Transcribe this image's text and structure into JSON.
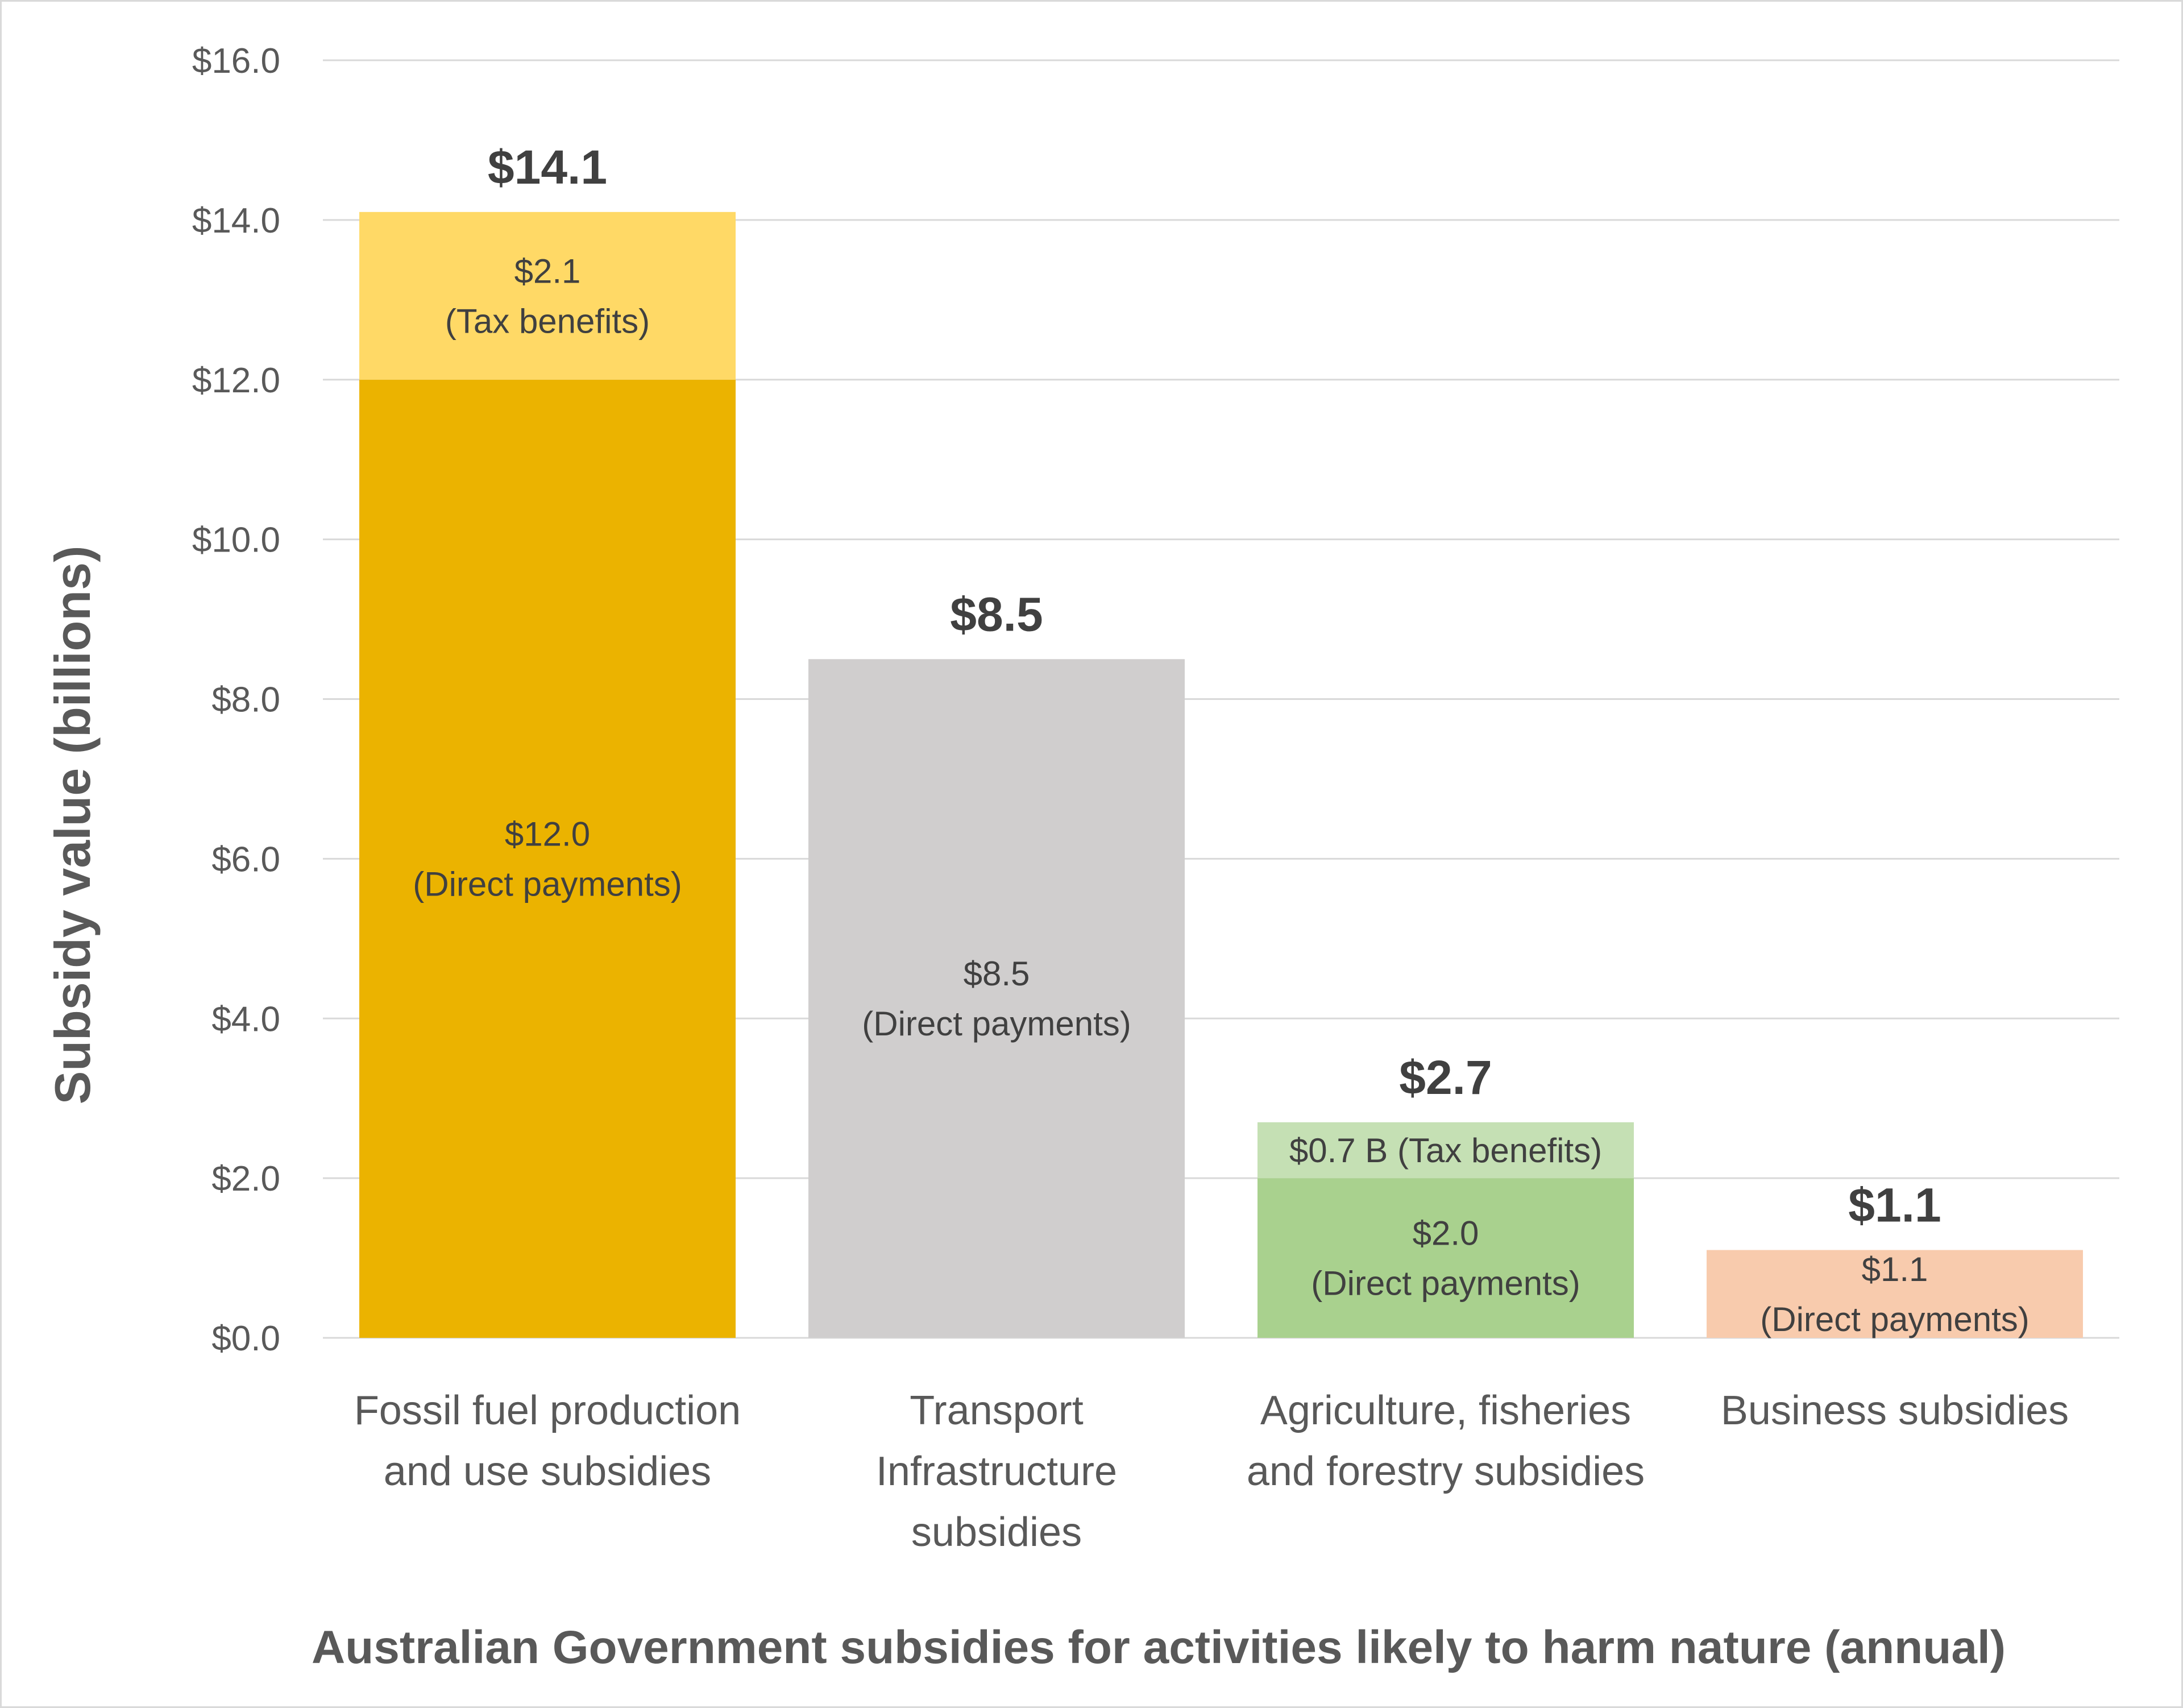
{
  "chart_data": {
    "type": "bar",
    "stacked": true,
    "title": "",
    "xlabel": "Australian Government subsidies for activities likely to harm nature (annual)",
    "ylabel": "Subsidy value (billions)",
    "ylim": [
      0,
      16
    ],
    "yticks": [
      0,
      2,
      4,
      6,
      8,
      10,
      12,
      14,
      16
    ],
    "ytick_labels": [
      "$0.0",
      "$2.0",
      "$4.0",
      "$6.0",
      "$8.0",
      "$10.0",
      "$12.0",
      "$14.0",
      "$16.0"
    ],
    "grid": true,
    "categories": [
      [
        "Fossil fuel production",
        "and use subsidies"
      ],
      [
        "Transport",
        "Infrastructure",
        "subsidies"
      ],
      [
        "Agriculture, fisheries",
        "and forestry subsidies"
      ],
      [
        "Business subsidies"
      ]
    ],
    "bars": [
      {
        "total": 14.1,
        "total_label": "$14.1",
        "segments": [
          {
            "name": "Direct payments",
            "value": 12.0,
            "color": "#EBB300",
            "label": [
              "$12.0",
              "(Direct payments)"
            ]
          },
          {
            "name": "Tax benefits",
            "value": 2.1,
            "color": "#FFD966",
            "label": [
              "$2.1",
              "(Tax benefits)"
            ]
          }
        ]
      },
      {
        "total": 8.5,
        "total_label": "$8.5",
        "segments": [
          {
            "name": "Direct payments",
            "value": 8.5,
            "color": "#D0CECE",
            "label": [
              "$8.5",
              "(Direct payments)"
            ]
          }
        ]
      },
      {
        "total": 2.7,
        "total_label": "$2.7",
        "segments": [
          {
            "name": "Direct payments",
            "value": 2.0,
            "color": "#A9D18E",
            "label": [
              "$2.0",
              "(Direct payments)"
            ]
          },
          {
            "name": "Tax benefits",
            "value": 0.7,
            "color": "#C5E0B4",
            "label": [
              "$0.7 B (Tax benefits)"
            ]
          }
        ]
      },
      {
        "total": 1.1,
        "total_label": "$1.1",
        "segments": [
          {
            "name": "Direct payments",
            "value": 1.1,
            "color": "#F8CBAD",
            "label": [
              "$1.1",
              "(Direct payments)"
            ]
          }
        ]
      }
    ]
  }
}
